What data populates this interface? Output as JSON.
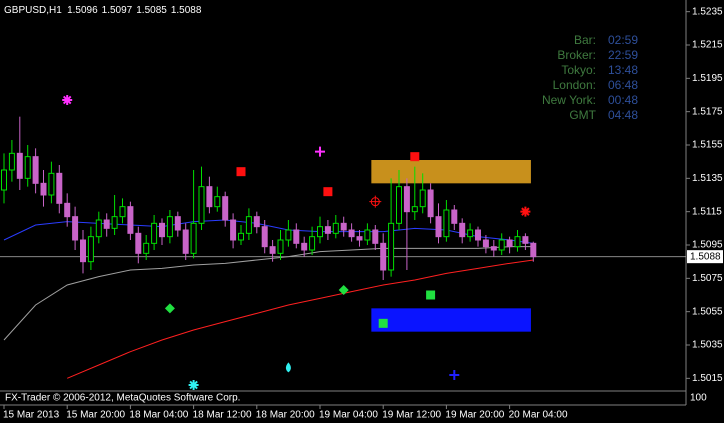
{
  "chart_data": {
    "type": "candlestick",
    "symbol": "GBPUSD,H1",
    "open": [
      1.5128,
      1.514,
      1.515,
      1.5135,
      1.5148,
      1.5132,
      1.5125,
      1.5138,
      1.512,
      1.5112,
      1.5098,
      1.5085,
      1.51,
      1.511,
      1.5105,
      1.5112,
      1.5118,
      1.5102,
      1.509,
      1.5096,
      1.5108,
      1.51,
      1.5112,
      1.5104,
      1.509,
      1.5108,
      1.513,
      1.5118,
      1.5124,
      1.511,
      1.5098,
      1.5102,
      1.5112,
      1.5106,
      1.5094,
      1.509,
      1.5098,
      1.5104,
      1.5096,
      1.5092,
      1.51,
      1.5106,
      1.5102,
      1.5108,
      1.5104,
      1.51,
      1.5098,
      1.5104,
      1.5096,
      1.508,
      1.5108,
      1.513,
      1.5115,
      1.5118,
      1.5128,
      1.5112,
      1.51,
      1.5116,
      1.5108,
      1.51,
      1.5104,
      1.5098,
      1.5094,
      1.5092,
      1.5098,
      1.5094,
      1.51,
      1.5096
    ],
    "high": [
      1.515,
      1.5158,
      1.5172,
      1.5155,
      1.5153,
      1.514,
      1.5145,
      1.5143,
      1.5126,
      1.5118,
      1.5104,
      1.5106,
      1.5115,
      1.5114,
      1.5125,
      1.5123,
      1.5121,
      1.5106,
      1.5101,
      1.5113,
      1.5111,
      1.5116,
      1.5115,
      1.5108,
      1.514,
      1.5142,
      1.5136,
      1.513,
      1.5127,
      1.5114,
      1.5107,
      1.5117,
      1.5115,
      1.511,
      1.5098,
      1.5104,
      1.511,
      1.5108,
      1.51,
      1.5106,
      1.5112,
      1.511,
      1.5113,
      1.5112,
      1.5108,
      1.5104,
      1.5108,
      1.5107,
      1.5102,
      1.5135,
      1.514,
      1.5135,
      1.5142,
      1.5138,
      1.5132,
      1.512,
      1.5122,
      1.5119,
      1.5111,
      1.5108,
      1.5106,
      1.5101,
      1.5098,
      1.5102,
      1.51,
      1.5104,
      1.5102,
      1.5097
    ],
    "low": [
      1.512,
      1.5133,
      1.5128,
      1.513,
      1.5126,
      1.5118,
      1.512,
      1.5114,
      1.5106,
      1.5092,
      1.5078,
      1.508,
      1.5096,
      1.51,
      1.5101,
      1.5108,
      1.5098,
      1.5084,
      1.5086,
      1.5092,
      1.5095,
      1.5096,
      1.51,
      1.5086,
      1.5087,
      1.5104,
      1.5114,
      1.5115,
      1.5106,
      1.5093,
      1.5095,
      1.5098,
      1.5102,
      1.509,
      1.5085,
      1.5086,
      1.5094,
      1.5093,
      1.5088,
      1.5089,
      1.5096,
      1.5098,
      1.5099,
      1.51,
      1.5097,
      1.5094,
      1.5095,
      1.5092,
      1.5074,
      1.5076,
      1.5104,
      1.508,
      1.511,
      1.5114,
      1.5108,
      1.5096,
      1.5097,
      1.5104,
      1.5096,
      1.5097,
      1.5094,
      1.509,
      1.5088,
      1.5089,
      1.509,
      1.5091,
      1.5092,
      1.5085
    ],
    "close": [
      1.514,
      1.515,
      1.5135,
      1.5148,
      1.5132,
      1.5125,
      1.5138,
      1.512,
      1.5112,
      1.5098,
      1.5085,
      1.51,
      1.511,
      1.5105,
      1.5112,
      1.5118,
      1.5102,
      1.509,
      1.5096,
      1.5108,
      1.51,
      1.5112,
      1.5104,
      1.509,
      1.5108,
      1.513,
      1.5118,
      1.5124,
      1.511,
      1.5098,
      1.5102,
      1.5112,
      1.5106,
      1.5094,
      1.509,
      1.5098,
      1.5104,
      1.5096,
      1.5092,
      1.51,
      1.5106,
      1.5102,
      1.5108,
      1.5104,
      1.51,
      1.5098,
      1.5104,
      1.5096,
      1.508,
      1.5108,
      1.513,
      1.5115,
      1.5118,
      1.5128,
      1.5112,
      1.51,
      1.5116,
      1.5108,
      1.51,
      1.5104,
      1.5098,
      1.5094,
      1.5092,
      1.5098,
      1.5094,
      1.51,
      1.5096,
      1.5088
    ],
    "bull_color": "#00e000",
    "bear_color": "#c864c8",
    "ylim": [
      1.5008,
      1.5242
    ],
    "yticks": [
      1.5235,
      1.5215,
      1.5195,
      1.5175,
      1.5155,
      1.5135,
      1.5115,
      1.5095,
      1.5075,
      1.5055,
      1.5035,
      1.5015
    ],
    "xticks": [
      {
        "value": 0,
        "label": "15 Mar 2013"
      },
      {
        "value": 8,
        "label": "15 Mar 20:00"
      },
      {
        "value": 16,
        "label": "18 Mar 04:00"
      },
      {
        "value": 24,
        "label": "18 Mar 12:00"
      },
      {
        "value": 32,
        "label": "18 Mar 20:00"
      },
      {
        "value": 40,
        "label": "19 Mar 04:00"
      },
      {
        "value": 48,
        "label": "19 Mar 12:00"
      },
      {
        "value": 56,
        "label": "19 Mar 20:00"
      },
      {
        "value": 64,
        "label": "20 Mar 04:00"
      }
    ],
    "lines": [
      {
        "color": "#2a3cff",
        "x": [
          0,
          4,
          8,
          12,
          16,
          20,
          24,
          28,
          32,
          36,
          40,
          44,
          48,
          52,
          56,
          60,
          64,
          67
        ],
        "values": [
          1.5098,
          1.5107,
          1.5109,
          1.5108,
          1.5107,
          1.5106,
          1.5109,
          1.511,
          1.5108,
          1.5104,
          1.5103,
          1.5103,
          1.5103,
          1.5105,
          1.5104,
          1.51,
          1.5098,
          1.5096
        ]
      },
      {
        "color": "#a0a0a0",
        "x": [
          0,
          4,
          8,
          12,
          16,
          20,
          24,
          28,
          32,
          36,
          40,
          44,
          48,
          52,
          56,
          60,
          64,
          67
        ],
        "values": [
          1.5038,
          1.5059,
          1.5071,
          1.5076,
          1.508,
          1.5081,
          1.5083,
          1.5084,
          1.5086,
          1.5088,
          1.5091,
          1.5092,
          1.5093,
          1.5093,
          1.5093,
          1.5093,
          1.5094,
          1.5094
        ]
      },
      {
        "color": "#ff2020",
        "x": [
          8,
          12,
          16,
          20,
          24,
          28,
          32,
          36,
          40,
          44,
          48,
          52,
          56,
          60,
          64,
          67
        ],
        "values": [
          1.5015,
          1.5023,
          1.5031,
          1.5038,
          1.5044,
          1.5049,
          1.5054,
          1.5059,
          1.5063,
          1.5067,
          1.5071,
          1.5074,
          1.5078,
          1.5081,
          1.5084,
          1.5086
        ]
      }
    ],
    "zones": [
      {
        "color": "#c8901c",
        "x": [
          46.5,
          66.7
        ],
        "y": [
          1.5146,
          1.5132
        ]
      },
      {
        "color": "#0a14ff",
        "x": [
          46.5,
          66.7
        ],
        "y": [
          1.5057,
          1.5043
        ]
      }
    ],
    "markers": [
      {
        "shape": "star",
        "color": "#ff30ff",
        "x": 8,
        "y": 1.5182
      },
      {
        "shape": "cross",
        "color": "#ff30ff",
        "x": 40,
        "y": 1.5151
      },
      {
        "shape": "square",
        "color": "#ff1010",
        "x": 30,
        "y": 1.5139
      },
      {
        "shape": "square",
        "color": "#ff1010",
        "x": 41,
        "y": 1.5127
      },
      {
        "shape": "square",
        "color": "#ff1010",
        "x": 52,
        "y": 1.5148
      },
      {
        "shape": "star",
        "color": "#ff1010",
        "x": 66,
        "y": 1.5115
      },
      {
        "shape": "crosshair",
        "color": "#ff1010",
        "x": 47,
        "y": 1.5121
      },
      {
        "shape": "diamond",
        "color": "#20e040",
        "x": 21,
        "y": 1.5057
      },
      {
        "shape": "diamond",
        "color": "#20e040",
        "x": 43,
        "y": 1.5068
      },
      {
        "shape": "square",
        "color": "#20e040",
        "x": 54,
        "y": 1.5065
      },
      {
        "shape": "square",
        "color": "#20e040",
        "x": 48,
        "y": 1.5048
      },
      {
        "shape": "drop",
        "color": "#30f0f0",
        "x": 36,
        "y": 1.5021
      },
      {
        "shape": "star",
        "color": "#30f0f0",
        "x": 24,
        "y": 1.5011
      },
      {
        "shape": "cross",
        "color": "#2020ff",
        "x": 57,
        "y": 1.5017
      }
    ],
    "clock": [
      {
        "label": "Bar:",
        "time": "02:59"
      },
      {
        "label": "Broker:",
        "time": "22:59"
      },
      {
        "label": "Tokyo:",
        "time": "13:48"
      },
      {
        "label": "London:",
        "time": "06:48"
      },
      {
        "label": "New York:",
        "time": "00:48"
      },
      {
        "label": "GMT",
        "time": "04:48"
      }
    ],
    "footer": "FX-Trader © 2006-2012, MetaQuotes Software Corp.",
    "subwindow_label": "100"
  }
}
